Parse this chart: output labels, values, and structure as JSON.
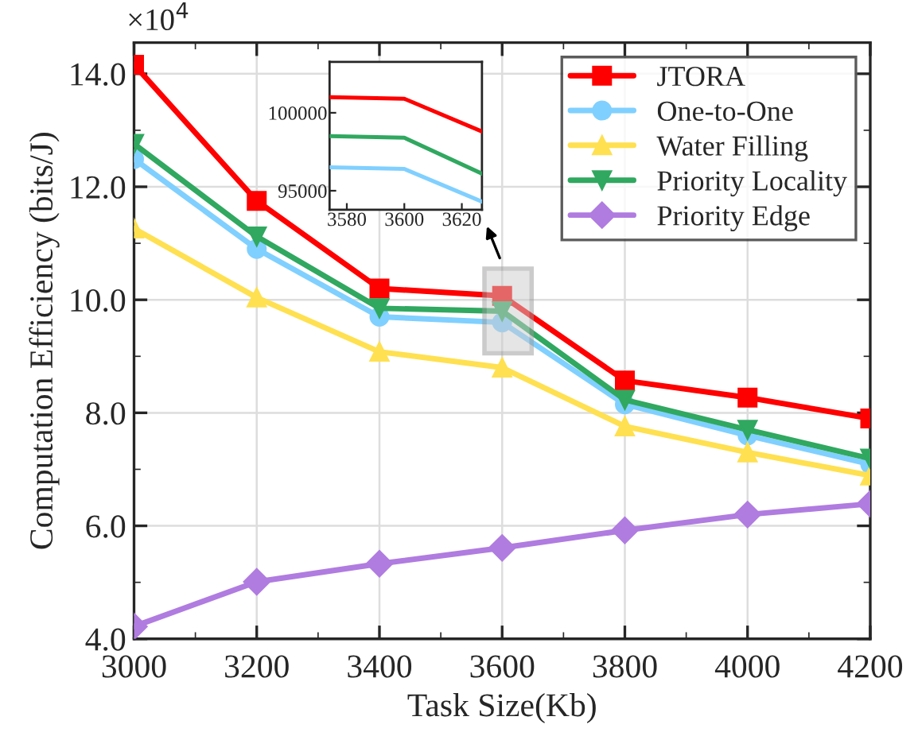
{
  "chart_data": [
    {
      "type": "line",
      "xlabel": "Task Size(Kb)",
      "ylabel": "Computation Efficiency (bits/J)",
      "annotations": [
        "×10$^{4}$"
      ],
      "x": [
        3000,
        3200,
        3400,
        3600,
        3800,
        4000,
        4200
      ],
      "xlim": [
        3000,
        4200
      ],
      "xticks": [
        3000,
        3200,
        3400,
        3600,
        3800,
        4000,
        4200
      ],
      "ylim": [
        4.0,
        14.55
      ],
      "yticks": [
        {
          "value": 4,
          "label": "4.0"
        },
        {
          "value": 6,
          "label": "6.0"
        },
        {
          "value": 8,
          "label": "8.0"
        },
        {
          "value": 10,
          "label": "10.0"
        },
        {
          "value": 12,
          "label": "12.0"
        },
        {
          "value": 14,
          "label": "14.0"
        }
      ],
      "grid": true,
      "legend": "top right",
      "series": [
        {
          "name": "JTORA",
          "color": "#ff0000",
          "marker": "square",
          "values": [
            14.16,
            11.75,
            10.2,
            10.07,
            8.57,
            8.27,
            7.9
          ]
        },
        {
          "name": "One-to-One",
          "color": "#80d0ff",
          "marker": "circle",
          "values": [
            12.49,
            10.9,
            9.7,
            9.6,
            8.15,
            7.6,
            7.09
          ]
        },
        {
          "name": "Water Filling",
          "color": "#ffe050",
          "marker": "triangle",
          "values": [
            11.26,
            10.04,
            9.08,
            8.8,
            7.76,
            7.3,
            6.89
          ]
        },
        {
          "name": "Priority Locality",
          "color": "#30a860",
          "marker": "triangle_down",
          "values": [
            12.76,
            11.12,
            9.85,
            9.8,
            8.23,
            7.7,
            7.19
          ]
        },
        {
          "name": "Priority Edge",
          "color": "#b07ce0",
          "marker": "diamond",
          "values": [
            4.22,
            5.01,
            5.33,
            5.61,
            5.92,
            6.2,
            6.39
          ]
        }
      ]
    },
    {
      "type": "line",
      "x": [
        3574,
        3600,
        3627
      ],
      "xlim": [
        3574,
        3627
      ],
      "xticks": [
        3580,
        3600,
        3620
      ],
      "ylim": [
        93780,
        103270
      ],
      "yticks": [
        95000,
        100000
      ],
      "series": [
        {
          "color": "#ff0000",
          "values": [
            101000,
            100900,
            98800
          ]
        },
        {
          "color": "#30a860",
          "values": [
            98500,
            98400,
            96100
          ]
        },
        {
          "color": "#80d0ff",
          "values": [
            96500,
            96400,
            94300
          ]
        }
      ]
    }
  ]
}
